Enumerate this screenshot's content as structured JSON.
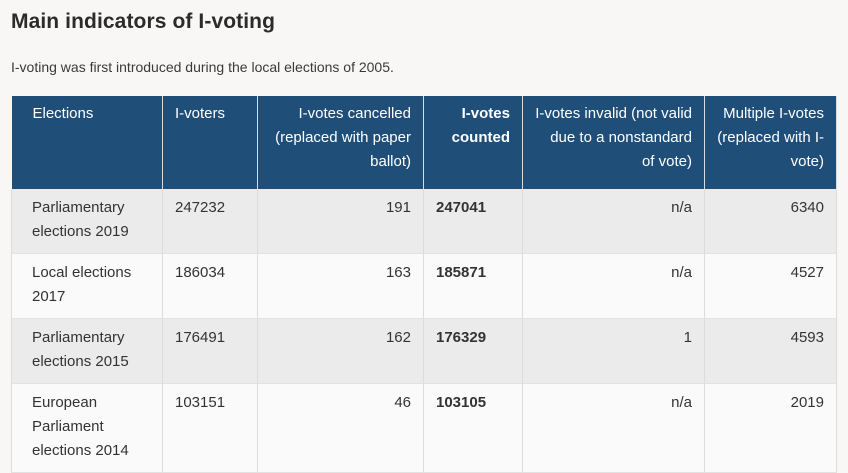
{
  "title": "Main indicators of I-voting",
  "intro": "I-voting was first introduced during the local elections of 2005.",
  "colors": {
    "header_bg": "#1f4e79",
    "header_text": "#ffffff",
    "row_shaded": "#ebebeb",
    "row_plain": "#fafafa",
    "page_bg": "#f8f7f5"
  },
  "table": {
    "headers": [
      "Elections",
      "I-voters",
      "I-votes cancelled (replaced with paper ballot)",
      "I-votes counted",
      "I-votes invalid (not valid due to a nonstandard of vote)",
      "Multiple I-votes (replaced with I-vote)"
    ],
    "rows": [
      [
        "Parliamentary elections 2019",
        "247232",
        "191",
        "247041",
        "n/a",
        "6340"
      ],
      [
        "Local elections 2017",
        "186034",
        "163",
        "185871",
        "n/a",
        "4527"
      ],
      [
        "Parliamentary elections 2015",
        "176491",
        "162",
        "176329",
        "1",
        "4593"
      ],
      [
        "European Parliament elections 2014",
        "103151",
        "46",
        "103105",
        "n/a",
        "2019"
      ]
    ]
  }
}
